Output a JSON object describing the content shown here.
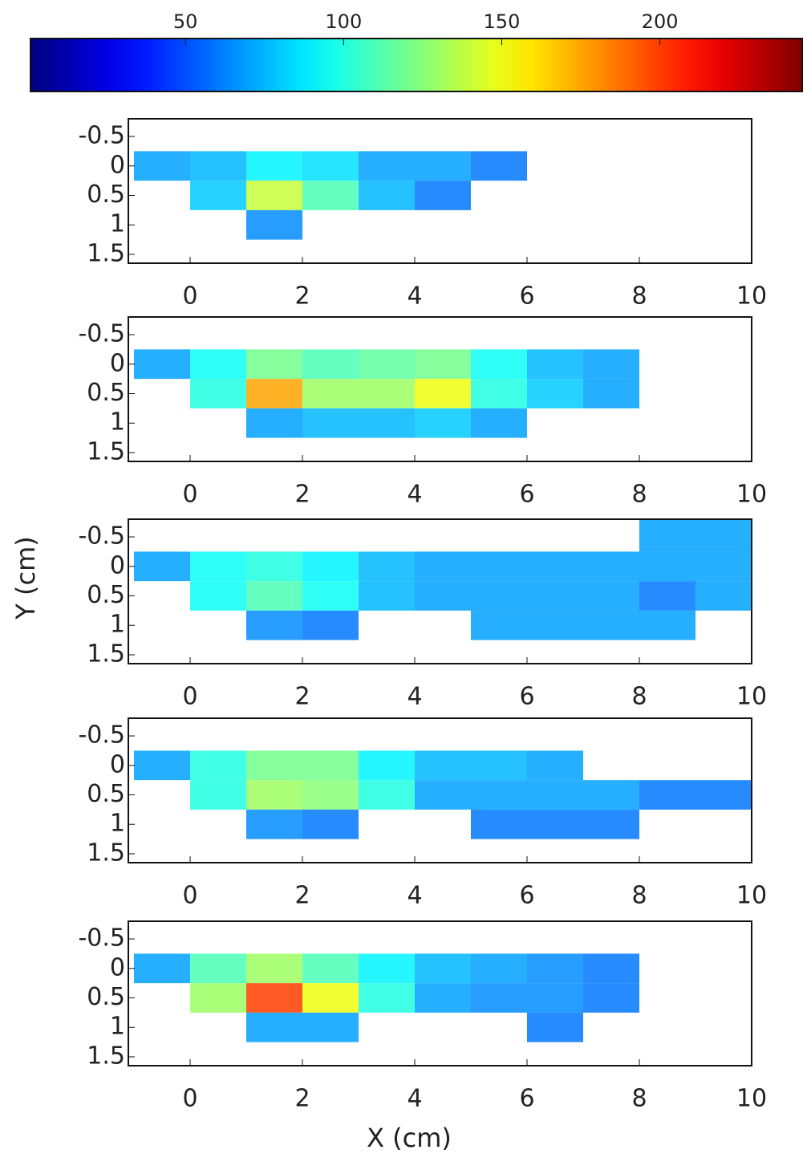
{
  "chart_data": [
    {
      "type": "heatmap",
      "xlim": [
        -1.1,
        10
      ],
      "ylim": [
        -0.8,
        1.65
      ],
      "xticks": [
        0,
        2,
        4,
        6,
        8,
        10
      ],
      "yticks": [
        -0.5,
        0,
        0.5,
        1,
        1.5
      ],
      "xbins": [
        -1,
        0,
        1,
        2,
        3,
        4,
        5,
        6,
        7,
        8,
        9,
        10
      ],
      "ybins": [
        -0.8,
        -0.25,
        0.25,
        0.75,
        1.25,
        1.65
      ],
      "z": [
        [
          null,
          null,
          null,
          null,
          null,
          null,
          null,
          null,
          null,
          null,
          null
        ],
        [
          70,
          75,
          90,
          85,
          70,
          70,
          60,
          null,
          null,
          null,
          null
        ],
        [
          null,
          80,
          140,
          110,
          75,
          60,
          null,
          null,
          null,
          null,
          null
        ],
        [
          null,
          null,
          65,
          null,
          null,
          null,
          null,
          null,
          null,
          null,
          null
        ],
        [
          null,
          null,
          null,
          null,
          null,
          null,
          null,
          null,
          null,
          null,
          null
        ]
      ]
    },
    {
      "type": "heatmap",
      "xlim": [
        -1.1,
        10
      ],
      "ylim": [
        -0.8,
        1.65
      ],
      "xticks": [
        0,
        2,
        4,
        6,
        8,
        10
      ],
      "yticks": [
        -0.5,
        0,
        0.5,
        1,
        1.5
      ],
      "xbins": [
        -1,
        0,
        1,
        2,
        3,
        4,
        5,
        6,
        7,
        8,
        9,
        10
      ],
      "ybins": [
        -0.8,
        -0.25,
        0.25,
        0.75,
        1.25,
        1.65
      ],
      "z": [
        [
          null,
          null,
          null,
          null,
          null,
          null,
          null,
          null,
          null,
          null,
          null
        ],
        [
          70,
          95,
          120,
          110,
          115,
          120,
          95,
          75,
          70,
          null,
          null
        ],
        [
          null,
          100,
          175,
          130,
          130,
          150,
          100,
          80,
          70,
          null,
          null
        ],
        [
          null,
          null,
          70,
          75,
          75,
          80,
          70,
          null,
          null,
          null,
          null
        ],
        [
          null,
          null,
          null,
          null,
          null,
          null,
          null,
          null,
          null,
          null,
          null
        ]
      ]
    },
    {
      "type": "heatmap",
      "xlim": [
        -1.1,
        10
      ],
      "ylim": [
        -0.8,
        1.65
      ],
      "xticks": [
        0,
        2,
        4,
        6,
        8,
        10
      ],
      "yticks": [
        -0.5,
        0,
        0.5,
        1,
        1.5
      ],
      "xbins": [
        -1,
        0,
        1,
        2,
        3,
        4,
        5,
        6,
        7,
        8,
        9,
        10
      ],
      "ybins": [
        -0.8,
        -0.25,
        0.25,
        0.75,
        1.25,
        1.65
      ],
      "z": [
        [
          null,
          null,
          null,
          null,
          null,
          null,
          null,
          null,
          null,
          70,
          70
        ],
        [
          70,
          95,
          100,
          90,
          75,
          70,
          70,
          70,
          70,
          70,
          70
        ],
        [
          null,
          95,
          110,
          95,
          75,
          70,
          70,
          70,
          70,
          60,
          70
        ],
        [
          null,
          null,
          65,
          60,
          null,
          null,
          70,
          70,
          70,
          70,
          null
        ],
        [
          null,
          null,
          null,
          null,
          null,
          null,
          null,
          null,
          null,
          null,
          null
        ]
      ]
    },
    {
      "type": "heatmap",
      "xlim": [
        -1.1,
        10
      ],
      "ylim": [
        -0.8,
        1.65
      ],
      "xticks": [
        0,
        2,
        4,
        6,
        8,
        10
      ],
      "yticks": [
        -0.5,
        0,
        0.5,
        1,
        1.5
      ],
      "xbins": [
        -1,
        0,
        1,
        2,
        3,
        4,
        5,
        6,
        7,
        8,
        9,
        10
      ],
      "ybins": [
        -0.8,
        -0.25,
        0.25,
        0.75,
        1.25,
        1.65
      ],
      "z": [
        [
          null,
          null,
          null,
          null,
          null,
          null,
          null,
          null,
          null,
          null,
          null
        ],
        [
          70,
          100,
          120,
          120,
          90,
          75,
          75,
          70,
          null,
          null,
          null
        ],
        [
          null,
          100,
          130,
          125,
          100,
          70,
          70,
          70,
          70,
          60,
          60
        ],
        [
          null,
          null,
          65,
          60,
          null,
          null,
          60,
          60,
          60,
          null,
          null
        ],
        [
          null,
          null,
          null,
          null,
          null,
          null,
          null,
          null,
          null,
          null,
          null
        ]
      ]
    },
    {
      "type": "heatmap",
      "xlim": [
        -1.1,
        10
      ],
      "ylim": [
        -0.8,
        1.65
      ],
      "xticks": [
        0,
        2,
        4,
        6,
        8,
        10
      ],
      "yticks": [
        -0.5,
        0,
        0.5,
        1,
        1.5
      ],
      "xbins": [
        -1,
        0,
        1,
        2,
        3,
        4,
        5,
        6,
        7,
        8,
        9,
        10
      ],
      "ybins": [
        -0.8,
        -0.25,
        0.25,
        0.75,
        1.25,
        1.65
      ],
      "z": [
        [
          null,
          null,
          null,
          null,
          null,
          null,
          null,
          null,
          null,
          null,
          null
        ],
        [
          70,
          110,
          130,
          110,
          90,
          75,
          70,
          65,
          60,
          null,
          null
        ],
        [
          null,
          130,
          200,
          150,
          100,
          70,
          65,
          65,
          60,
          null,
          null
        ],
        [
          null,
          null,
          70,
          70,
          null,
          null,
          null,
          60,
          null,
          null,
          null
        ],
        [
          null,
          null,
          null,
          null,
          null,
          null,
          null,
          null,
          null,
          null,
          null
        ]
      ]
    }
  ],
  "colorbar": {
    "colormap": "jet",
    "clim": [
      1,
      245
    ],
    "ticks": [
      50,
      100,
      150,
      200
    ]
  },
  "xlabel": "X (cm)",
  "ylabel": "Y (cm)"
}
